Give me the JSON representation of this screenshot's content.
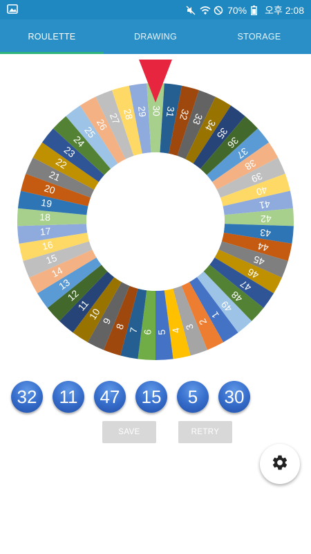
{
  "status_bar": {
    "battery": "70%",
    "time": "오후 2:08",
    "left_icon": "image-icon",
    "right_icons": [
      "mute-icon",
      "wifi-icon",
      "block-icon",
      "battery-icon"
    ]
  },
  "tabs": [
    {
      "label": "ROULETTE",
      "active": true
    },
    {
      "label": "DRAWING",
      "active": false
    },
    {
      "label": "STORAGE",
      "active": false
    }
  ],
  "wheel": {
    "segments": [
      "30",
      "31",
      "32",
      "33",
      "34",
      "35",
      "36",
      "37",
      "38",
      "39",
      "40",
      "41",
      "42",
      "43",
      "44",
      "45",
      "46",
      "47",
      "48",
      "49",
      "1",
      "2",
      "3",
      "4",
      "5",
      "6",
      "7",
      "8",
      "9",
      "10",
      "11",
      "12",
      "13",
      "14",
      "15",
      "16",
      "17",
      "18",
      "19",
      "20",
      "21",
      "22",
      "23",
      "24",
      "25",
      "26",
      "27",
      "28",
      "29"
    ],
    "colors": [
      "#a8d08d",
      "#255e91",
      "#9e480e",
      "#636363",
      "#997300",
      "#264478",
      "#43682b",
      "#5b9bd5",
      "#f4b183",
      "#bfbfbf",
      "#ffd966",
      "#8faadc",
      "#a8d08d",
      "#2e75b6",
      "#c55a11",
      "#7f7f7f",
      "#bf9000",
      "#2f5597",
      "#548235",
      "#9dc3e6",
      "#4472c4",
      "#ed7d31",
      "#a5a5a5",
      "#ffc000",
      "#4472c4",
      "#70ad47",
      "#255e91",
      "#9e480e",
      "#636363",
      "#997300",
      "#264478",
      "#43682b",
      "#5b9bd5",
      "#f4b183",
      "#bfbfbf",
      "#ffd966",
      "#8faadc",
      "#a8d08d",
      "#2e75b6",
      "#c55a11",
      "#7f7f7f",
      "#bf9000",
      "#2f5597",
      "#548235",
      "#9dc3e6",
      "#f4b183",
      "#bfbfbf",
      "#ffd966",
      "#8faadc"
    ],
    "pointer_color": "#e8253f"
  },
  "results": [
    "32",
    "11",
    "47",
    "15",
    "5",
    "30"
  ],
  "buttons": {
    "save": "SAVE",
    "retry": "RETRY"
  },
  "fab_icon": "gear-icon"
}
